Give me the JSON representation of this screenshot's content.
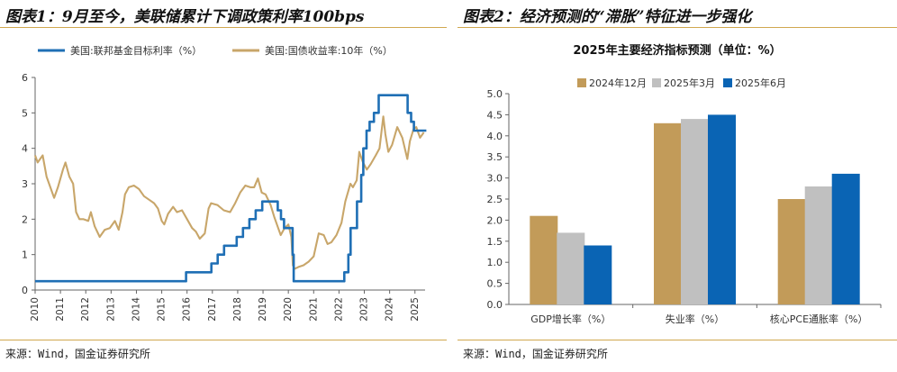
{
  "colors": {
    "rule": "#d1a84f",
    "fed": "#1f6fb5",
    "treasury": "#c8a66a",
    "bar_2024_12": "#c29b59",
    "bar_2025_03": "#c0c0c0",
    "bar_2025_06": "#0a64b4"
  },
  "left": {
    "title": "图表1：9月至今，美联储累计下调政策利率100bps",
    "source": "来源：Wind，国金证券研究所"
  },
  "right": {
    "title": "图表2：经济预测的“滞胀”特征进一步强化",
    "source": "来源：Wind，国金证券研究所"
  },
  "chart_data": [
    {
      "type": "line",
      "legend_position": "top",
      "ylim": [
        0,
        6
      ],
      "y_ticks": [
        "0",
        "1",
        "2",
        "3",
        "4",
        "5",
        "6"
      ],
      "x_ticks": [
        "2010",
        "2011",
        "2012",
        "2013",
        "2014",
        "2015",
        "2016",
        "2017",
        "2018",
        "2019",
        "2020",
        "2021",
        "2022",
        "2023",
        "2024",
        "2025"
      ],
      "xlim": [
        2010,
        2025.4
      ],
      "series": [
        {
          "name": "美国:联邦基金目标利率（%）",
          "step": true,
          "x": [
            2010,
            2015.96,
            2016.96,
            2017.21,
            2017.46,
            2017.96,
            2018.21,
            2018.46,
            2018.71,
            2018.97,
            2019.58,
            2019.71,
            2019.83,
            2020.17,
            2020.21,
            2022.21,
            2022.37,
            2022.46,
            2022.71,
            2022.88,
            2022.96,
            2023.09,
            2023.21,
            2023.38,
            2023.57,
            2024.71,
            2024.85,
            2024.96,
            2025.45
          ],
          "values": [
            0.25,
            0.5,
            0.75,
            1.0,
            1.25,
            1.5,
            1.75,
            2.0,
            2.25,
            2.5,
            2.25,
            2.0,
            1.75,
            1.0,
            0.25,
            0.5,
            1.0,
            1.75,
            2.5,
            3.25,
            4.0,
            4.5,
            4.75,
            5.0,
            5.5,
            5.0,
            4.75,
            4.5,
            4.5
          ]
        },
        {
          "name": "美国:国债收益率:10年（%）",
          "step": false,
          "x": [
            2010.0,
            2010.1,
            2010.3,
            2010.45,
            2010.6,
            2010.75,
            2010.9,
            2011.1,
            2011.2,
            2011.35,
            2011.5,
            2011.62,
            2011.75,
            2011.9,
            2012.1,
            2012.2,
            2012.35,
            2012.55,
            2012.75,
            2012.95,
            2013.15,
            2013.3,
            2013.45,
            2013.55,
            2013.7,
            2013.9,
            2014.1,
            2014.3,
            2014.5,
            2014.7,
            2014.85,
            2015.0,
            2015.1,
            2015.25,
            2015.45,
            2015.6,
            2015.8,
            2016.0,
            2016.2,
            2016.35,
            2016.5,
            2016.7,
            2016.85,
            2016.95,
            2017.2,
            2017.45,
            2017.7,
            2017.9,
            2018.1,
            2018.3,
            2018.5,
            2018.65,
            2018.8,
            2018.95,
            2019.1,
            2019.3,
            2019.45,
            2019.6,
            2019.7,
            2019.85,
            2020.0,
            2020.12,
            2020.18,
            2020.25,
            2020.4,
            2020.6,
            2020.8,
            2021.0,
            2021.2,
            2021.4,
            2021.55,
            2021.7,
            2021.9,
            2022.1,
            2022.25,
            2022.45,
            2022.55,
            2022.7,
            2022.8,
            2022.95,
            2023.1,
            2023.25,
            2023.45,
            2023.6,
            2023.75,
            2023.83,
            2023.95,
            2024.1,
            2024.3,
            2024.5,
            2024.7,
            2024.8,
            2024.95,
            2025.05,
            2025.2,
            2025.35
          ],
          "values": [
            3.8,
            3.6,
            3.8,
            3.2,
            2.9,
            2.6,
            2.9,
            3.4,
            3.6,
            3.2,
            3.0,
            2.2,
            2.0,
            2.0,
            1.95,
            2.2,
            1.8,
            1.5,
            1.7,
            1.75,
            1.95,
            1.7,
            2.2,
            2.7,
            2.9,
            2.95,
            2.85,
            2.65,
            2.55,
            2.45,
            2.3,
            1.95,
            1.85,
            2.15,
            2.35,
            2.2,
            2.25,
            2.0,
            1.75,
            1.65,
            1.45,
            1.6,
            2.3,
            2.45,
            2.4,
            2.25,
            2.2,
            2.45,
            2.75,
            2.95,
            2.9,
            2.9,
            3.15,
            2.75,
            2.7,
            2.4,
            2.05,
            1.75,
            1.55,
            1.75,
            1.85,
            1.5,
            0.7,
            0.6,
            0.65,
            0.7,
            0.8,
            0.95,
            1.6,
            1.55,
            1.3,
            1.35,
            1.55,
            1.9,
            2.5,
            3.0,
            2.9,
            3.1,
            3.9,
            3.6,
            3.4,
            3.55,
            3.8,
            4.0,
            4.9,
            4.4,
            3.9,
            4.1,
            4.6,
            4.3,
            3.7,
            4.2,
            4.55,
            4.6,
            4.3,
            4.45
          ]
        }
      ]
    },
    {
      "type": "bar",
      "title": "2025年主要经济指标预测（单位：%）",
      "legend_position": "top",
      "ylim": [
        0,
        5
      ],
      "y_ticks": [
        "0.0",
        "0.5",
        "1.0",
        "1.5",
        "2.0",
        "2.5",
        "3.0",
        "3.5",
        "4.0",
        "4.5",
        "5.0"
      ],
      "categories": [
        "GDP增长率（%）",
        "失业率（%）",
        "核心PCE通胀率（%）"
      ],
      "series": [
        {
          "name": "2024年12月",
          "values": [
            2.1,
            4.3,
            2.5
          ]
        },
        {
          "name": "2025年3月",
          "values": [
            1.7,
            4.4,
            2.8
          ]
        },
        {
          "name": "2025年6月",
          "values": [
            1.4,
            4.5,
            3.1
          ]
        }
      ]
    }
  ]
}
